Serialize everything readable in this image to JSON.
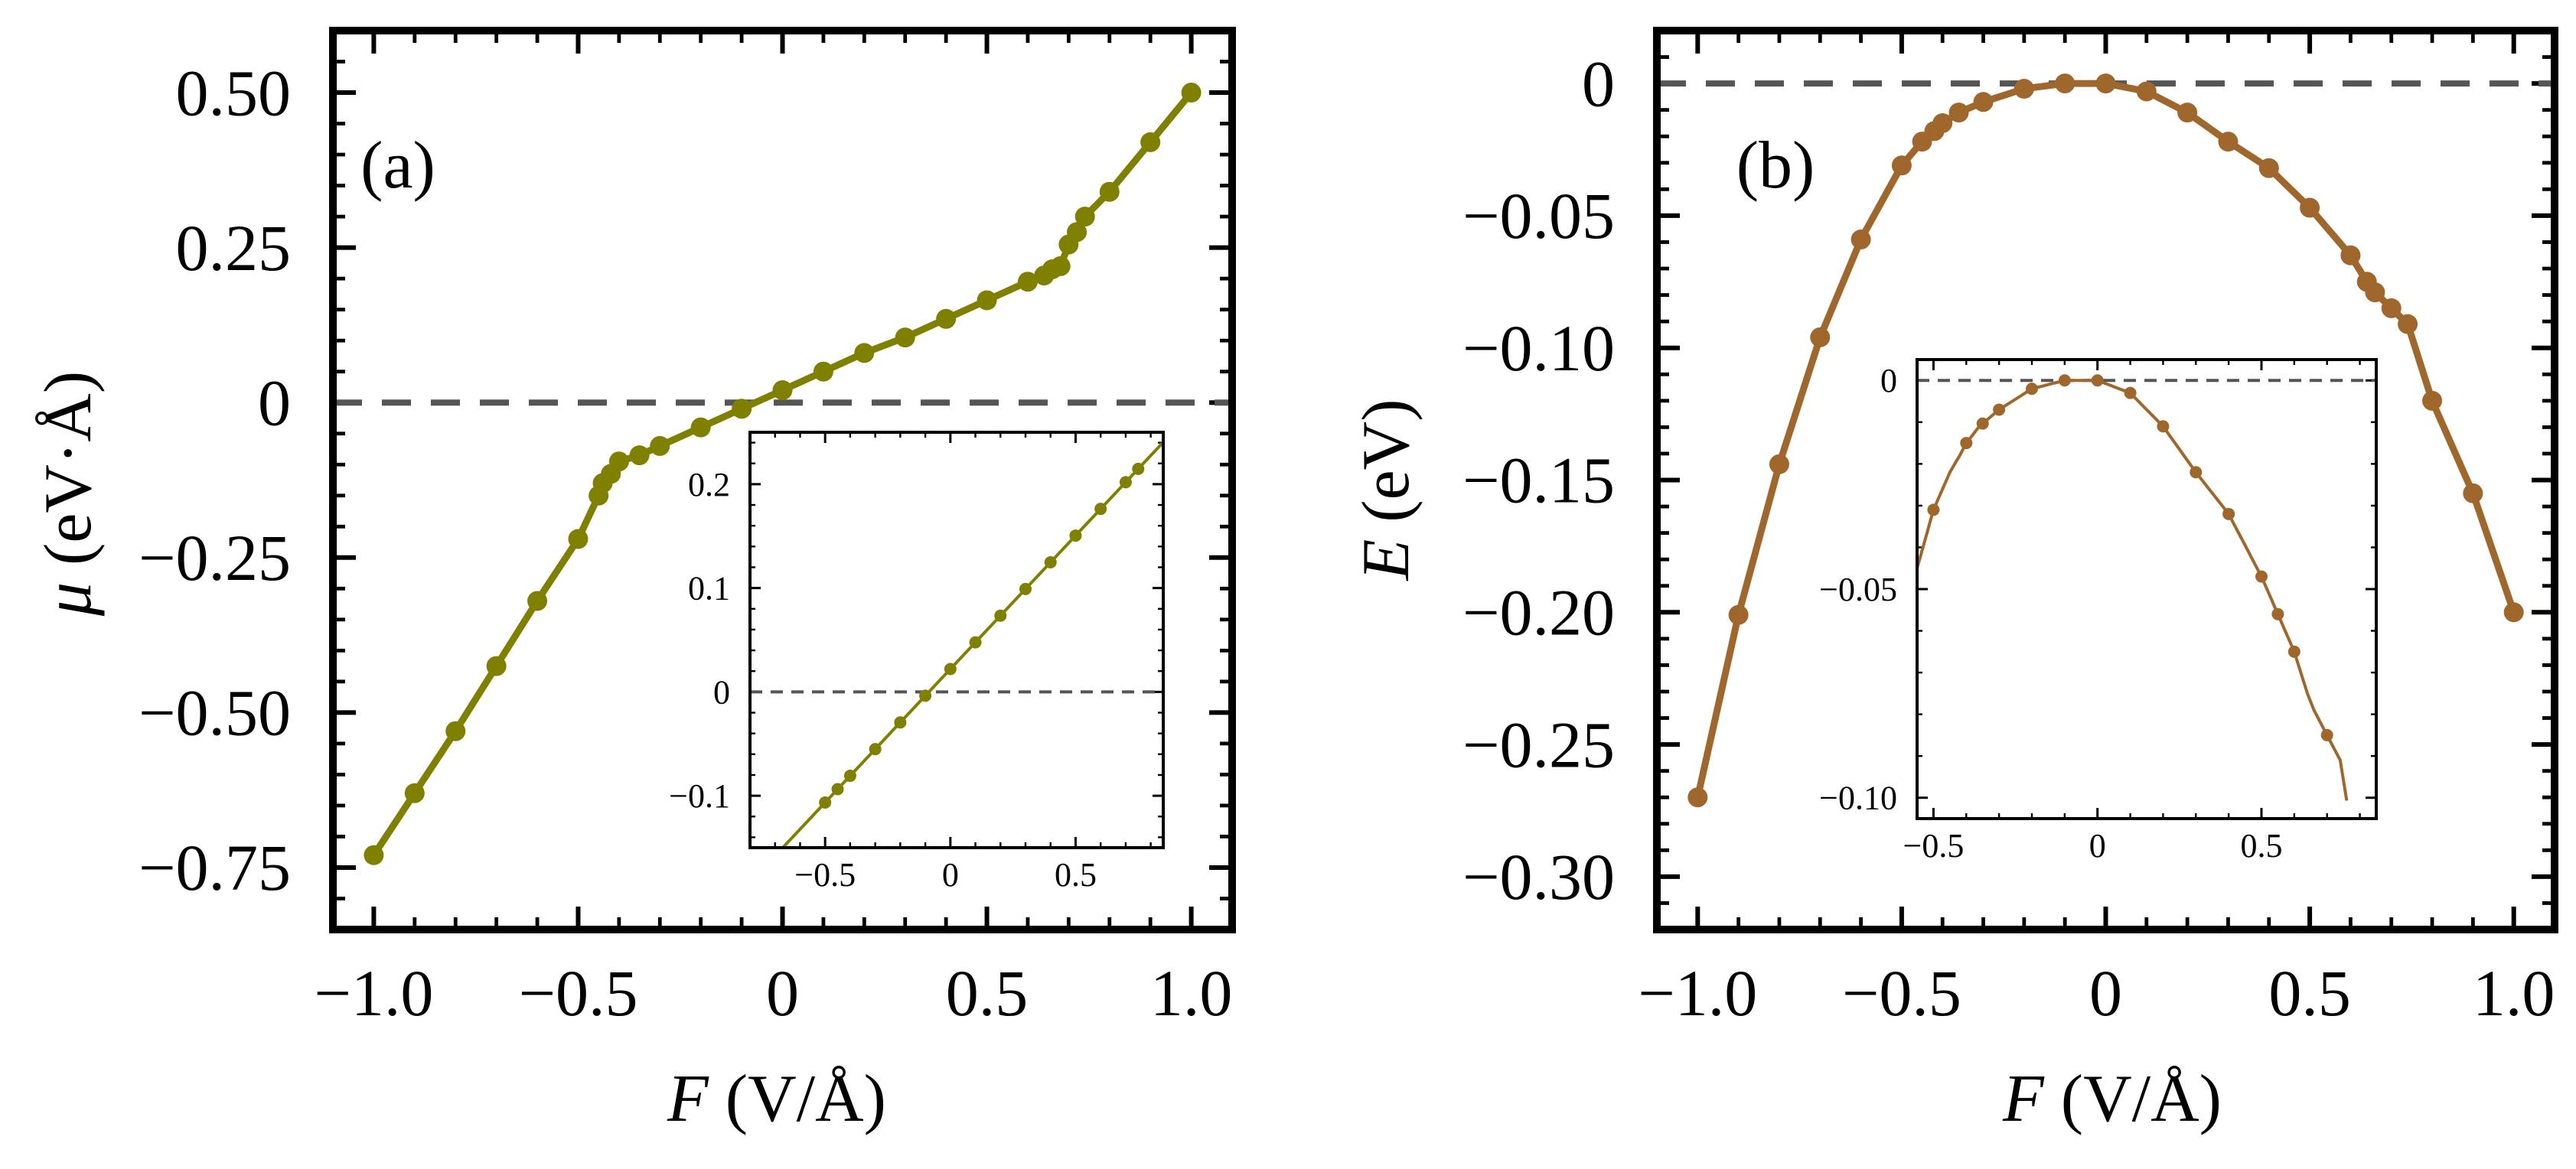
{
  "figure": {
    "background": "#ffffff"
  },
  "chart_data": [
    {
      "id": "a",
      "type": "line",
      "panel_label": "(a)",
      "xlabel_symbol": "F",
      "xlabel_unit": "(V/Å)",
      "ylabel_symbol": "μ",
      "ylabel_unit": "(eV·Å)",
      "xlim": [
        -1.1,
        1.1
      ],
      "ylim": [
        -0.85,
        0.6
      ],
      "xticks": [
        -1.0,
        -0.5,
        0,
        0.5,
        1.0
      ],
      "xtick_labels": [
        "−1.0",
        "−0.5",
        "0",
        "0.5",
        "1.0"
      ],
      "yticks": [
        -0.75,
        -0.5,
        -0.25,
        0,
        0.25,
        0.5
      ],
      "ytick_labels": [
        "−0.75",
        "−0.50",
        "−0.25",
        "0",
        "0.25",
        "0.50"
      ],
      "reference_line": 0,
      "color": "#808000",
      "series": [
        {
          "name": "μ",
          "x": [
            -1.0,
            -0.9,
            -0.8,
            -0.7,
            -0.6,
            -0.5,
            -0.45,
            -0.44,
            -0.42,
            -0.4,
            -0.35,
            -0.3,
            -0.2,
            -0.1,
            0,
            0.1,
            0.2,
            0.3,
            0.4,
            0.5,
            0.6,
            0.64,
            0.66,
            0.68,
            0.7,
            0.72,
            0.74,
            0.8,
            0.9,
            1.0
          ],
          "y": [
            -0.73,
            -0.63,
            -0.53,
            -0.425,
            -0.32,
            -0.22,
            -0.15,
            -0.13,
            -0.115,
            -0.095,
            -0.085,
            -0.07,
            -0.04,
            -0.01,
            0.02,
            0.05,
            0.08,
            0.105,
            0.135,
            0.165,
            0.195,
            0.205,
            0.215,
            0.22,
            0.255,
            0.275,
            0.3,
            0.34,
            0.42,
            0.5
          ]
        }
      ],
      "inset": {
        "xlim": [
          -0.8,
          0.85
        ],
        "ylim": [
          -0.15,
          0.25
        ],
        "xticks": [
          -0.5,
          0,
          0.5
        ],
        "xtick_labels": [
          "−0.5",
          "0",
          "0.5"
        ],
        "yticks": [
          -0.1,
          0,
          0.1,
          0.2
        ],
        "ytick_labels": [
          "−0.1",
          "0",
          "0.1",
          "0.2"
        ],
        "line": {
          "slope": 0.257,
          "intercept": 0.022
        },
        "x": [
          -0.5,
          -0.45,
          -0.4,
          -0.3,
          -0.2,
          -0.1,
          0,
          0.1,
          0.2,
          0.3,
          0.4,
          0.5,
          0.6,
          0.7,
          0.75
        ]
      }
    },
    {
      "id": "b",
      "type": "line",
      "panel_label": "(b)",
      "xlabel_symbol": "F",
      "xlabel_unit": "(V/Å)",
      "ylabel_symbol": "E",
      "ylabel_unit": "(eV)",
      "xlim": [
        -1.1,
        1.1
      ],
      "ylim": [
        -0.32,
        0.02
      ],
      "xticks": [
        -1.0,
        -0.5,
        0,
        0.5,
        1.0
      ],
      "xtick_labels": [
        "−1.0",
        "−0.5",
        "0",
        "0.5",
        "1.0"
      ],
      "yticks": [
        0,
        -0.05,
        -0.1,
        -0.15,
        -0.2,
        -0.25,
        -0.3
      ],
      "ytick_labels": [
        "0",
        "−0.05",
        "−0.10",
        "−0.15",
        "−0.20",
        "−0.25",
        "−0.30"
      ],
      "reference_line": 0,
      "color": "#A0672D",
      "series": [
        {
          "name": "E",
          "x": [
            -1.0,
            -0.9,
            -0.8,
            -0.7,
            -0.6,
            -0.5,
            -0.45,
            -0.42,
            -0.4,
            -0.36,
            -0.3,
            -0.2,
            -0.1,
            0,
            0.1,
            0.2,
            0.3,
            0.4,
            0.5,
            0.6,
            0.64,
            0.66,
            0.7,
            0.74,
            0.8,
            0.9,
            1.0
          ],
          "y": [
            -0.27,
            -0.201,
            -0.144,
            -0.096,
            -0.059,
            -0.031,
            -0.022,
            -0.018,
            -0.015,
            -0.011,
            -0.007,
            -0.002,
            0,
            0,
            -0.003,
            -0.011,
            -0.022,
            -0.032,
            -0.047,
            -0.065,
            -0.075,
            -0.079,
            -0.085,
            -0.091,
            -0.12,
            -0.155,
            -0.2
          ]
        }
      ],
      "inset": {
        "xlim": [
          -0.55,
          0.85
        ],
        "ylim": [
          -0.105,
          0.005
        ],
        "xticks": [
          -0.5,
          0,
          0.5
        ],
        "xtick_labels": [
          "−0.5",
          "0",
          "0.5"
        ],
        "yticks": [
          0,
          -0.05,
          -0.1
        ],
        "ytick_labels": [
          "0",
          "−0.05",
          "−0.10"
        ],
        "x": [
          -0.5,
          -0.4,
          -0.35,
          -0.3,
          -0.2,
          -0.1,
          0,
          0.1,
          0.2,
          0.3,
          0.4,
          0.5,
          0.55,
          0.6,
          0.7
        ]
      }
    }
  ]
}
